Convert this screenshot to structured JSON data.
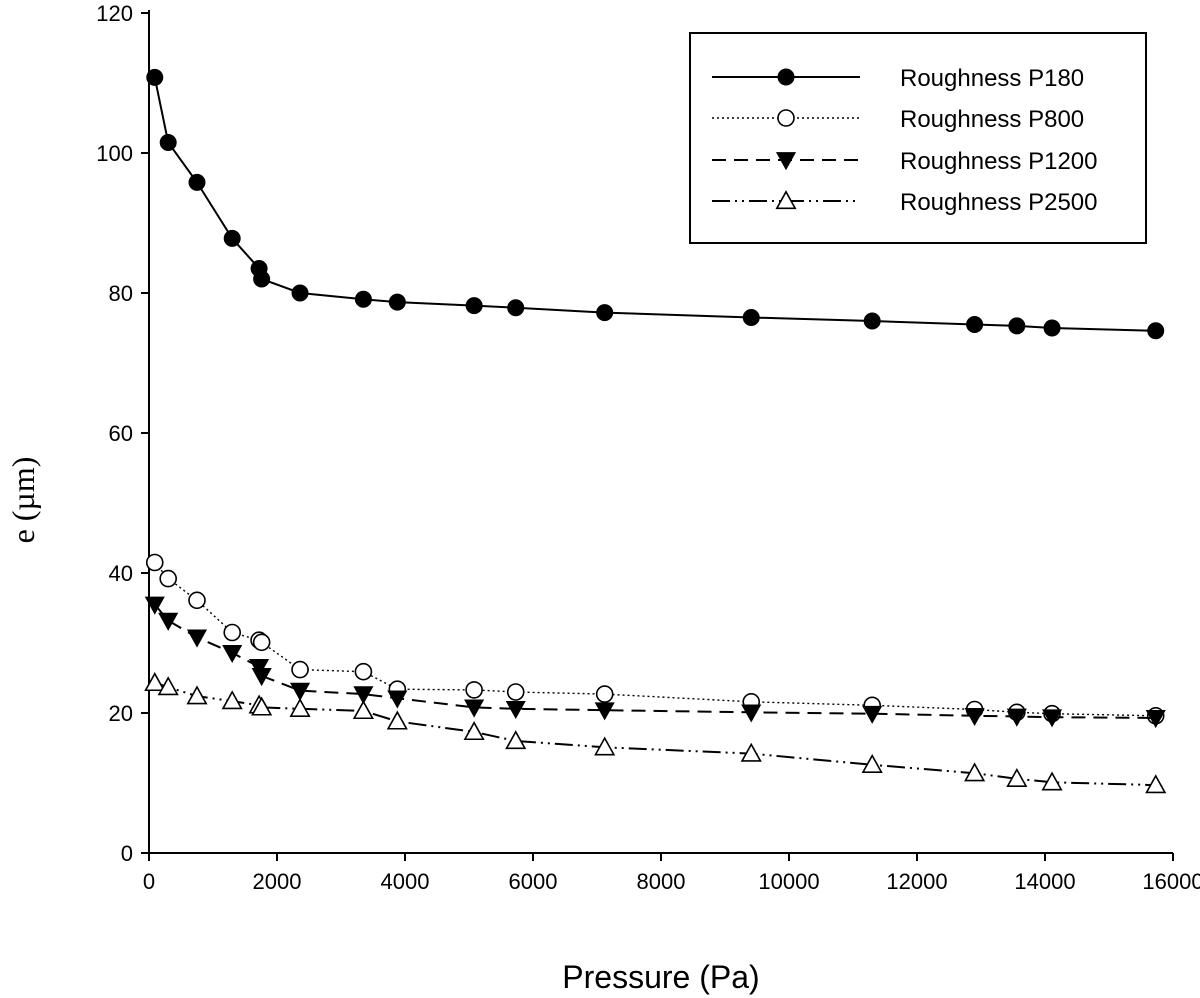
{
  "chart_data": {
    "type": "line",
    "title": "",
    "xlabel": "Pressure (Pa)",
    "ylabel": "e (µm)",
    "xlim": [
      0,
      16000
    ],
    "ylim": [
      0,
      120
    ],
    "xticks": [
      "0",
      "2000",
      "4000",
      "6000",
      "8000",
      "10000",
      "12000",
      "14000",
      "16000"
    ],
    "yticks": [
      "0",
      "20",
      "40",
      "60",
      "80",
      "100",
      "120"
    ],
    "grid": false,
    "legend_position": "top-right",
    "series": [
      {
        "name": "Roughness P180",
        "marker": "filled-circle",
        "line": "solid",
        "x": [
          90,
          300,
          750,
          1300,
          1720,
          1760,
          2360,
          3350,
          3880,
          5080,
          5730,
          7120,
          9410,
          11300,
          12900,
          13560,
          14110,
          15730
        ],
        "y": [
          110.8,
          101.5,
          95.8,
          87.8,
          83.5,
          82.0,
          80.0,
          79.1,
          78.7,
          78.2,
          77.9,
          77.2,
          76.5,
          76.0,
          75.5,
          75.3,
          75.0,
          74.6
        ]
      },
      {
        "name": "Roughness P800",
        "marker": "open-circle",
        "line": "dotted",
        "x": [
          90,
          300,
          750,
          1300,
          1720,
          1760,
          2360,
          3350,
          3880,
          5080,
          5730,
          7120,
          9410,
          11300,
          12900,
          13560,
          14110,
          15730
        ],
        "y": [
          41.5,
          39.2,
          36.1,
          31.5,
          30.4,
          30.1,
          26.2,
          25.9,
          23.4,
          23.3,
          23.0,
          22.7,
          21.6,
          21.1,
          20.5,
          20.1,
          19.9,
          19.6
        ]
      },
      {
        "name": "Roughness P1200",
        "marker": "filled-triangle-down",
        "line": "dashed",
        "x": [
          90,
          300,
          750,
          1300,
          1720,
          1760,
          2360,
          3350,
          3880,
          5080,
          5730,
          7120,
          9410,
          11300,
          12900,
          13560,
          14110,
          15730
        ],
        "y": [
          35.5,
          33.2,
          30.8,
          28.6,
          26.6,
          25.3,
          23.2,
          22.7,
          22.1,
          20.8,
          20.6,
          20.4,
          20.1,
          19.9,
          19.6,
          19.5,
          19.4,
          19.3
        ]
      },
      {
        "name": "Roughness P2500",
        "marker": "open-triangle-up",
        "line": "dash-dot-dot",
        "x": [
          90,
          300,
          750,
          1300,
          1720,
          1760,
          2360,
          3350,
          3880,
          5080,
          5730,
          7120,
          9410,
          11300,
          12900,
          13560,
          14110,
          15730
        ],
        "y": [
          24.3,
          23.7,
          22.4,
          21.7,
          21.1,
          20.8,
          20.6,
          20.3,
          18.8,
          17.3,
          16.0,
          15.1,
          14.2,
          12.6,
          11.4,
          10.6,
          10.1,
          9.7
        ]
      }
    ]
  }
}
